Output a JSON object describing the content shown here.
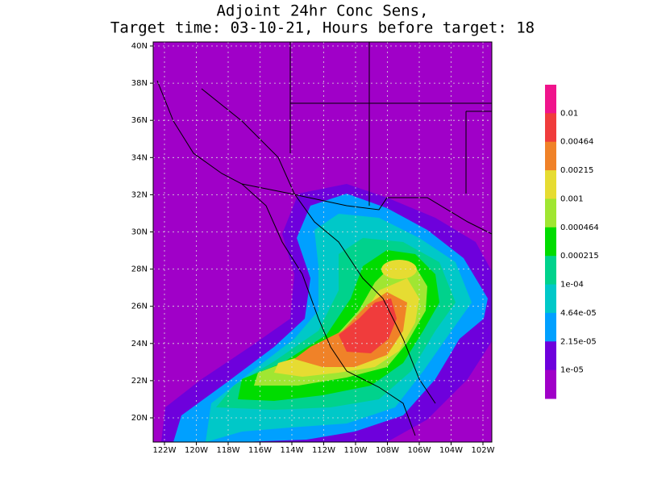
{
  "title": [
    "Adjoint 24hr Conc Sens,",
    "Target time: 03-10-21, Hours before target: 18"
  ],
  "map": {
    "lat_labels": [
      "40N",
      "38N",
      "36N",
      "34N",
      "32N",
      "30N",
      "28N",
      "26N",
      "24N",
      "22N",
      "20N"
    ],
    "lon_labels": [
      "122W",
      "120W",
      "118W",
      "116W",
      "114W",
      "112W",
      "110W",
      "108W",
      "106W",
      "104W",
      "102W"
    ]
  },
  "colorbar": {
    "labels": [
      "0.01",
      "0.00464",
      "0.00215",
      "0.001",
      "0.000464",
      "0.000215",
      "1e-04",
      "4.64e-05",
      "2.15e-05",
      "1e-05"
    ],
    "colors": [
      "#f0148c",
      "#f03c3c",
      "#f08228",
      "#e6dc32",
      "#a0e632",
      "#00dc00",
      "#00d28c",
      "#00c8c8",
      "#00a0ff",
      "#6e00dc",
      "#a000c8"
    ]
  }
}
